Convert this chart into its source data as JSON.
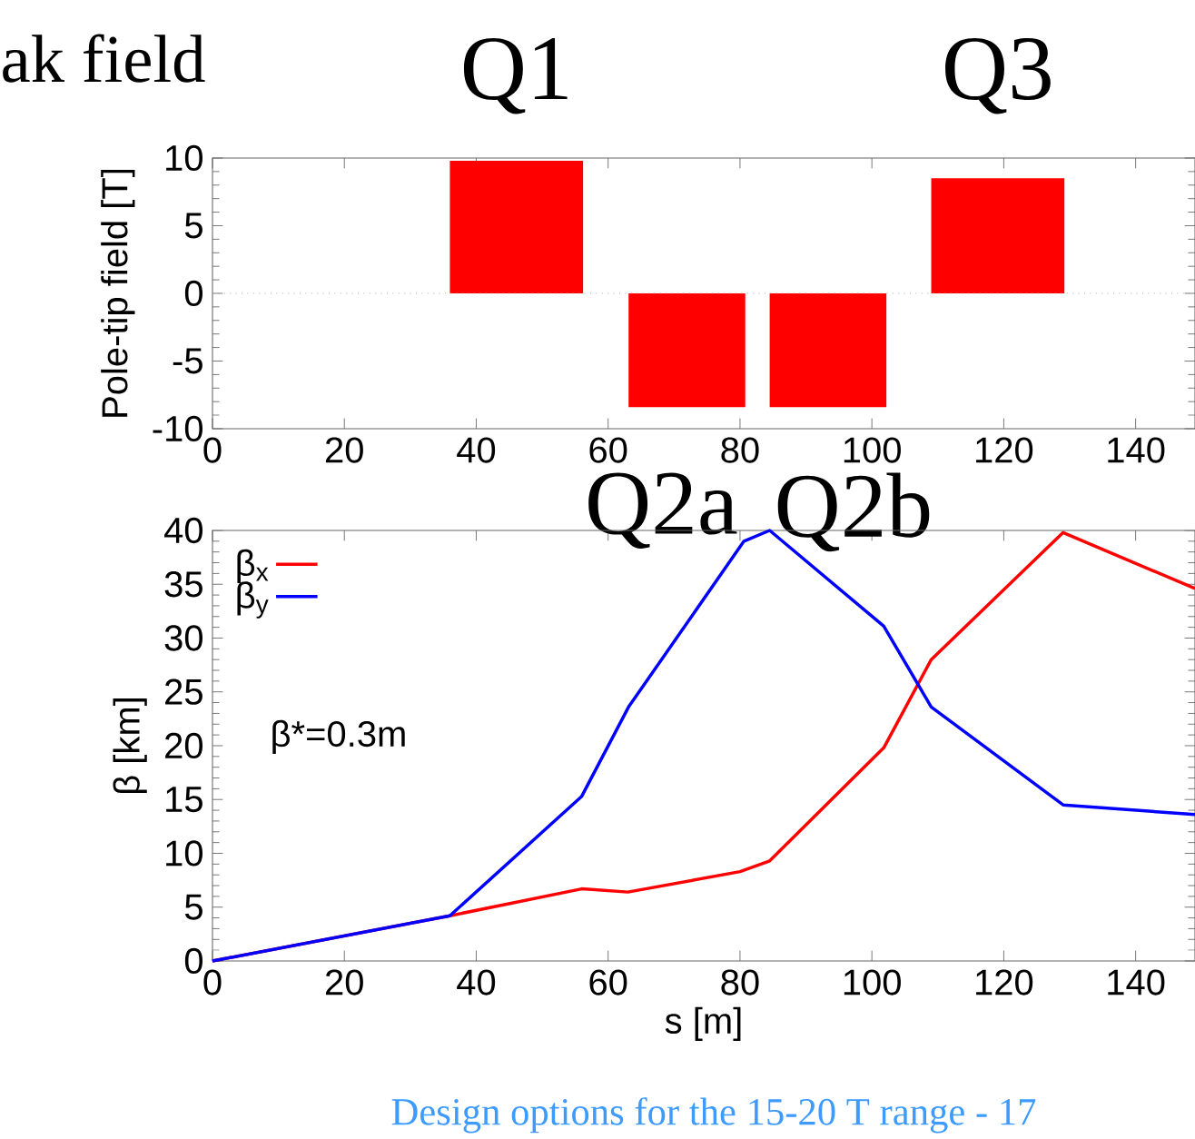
{
  "chart_data": [
    {
      "type": "area",
      "title": "ak field",
      "ylabel": "Pole-tip field [T]",
      "xlim": [
        0,
        149
      ],
      "xticks": [
        0,
        20,
        40,
        60,
        80,
        100,
        120,
        140
      ],
      "ylim": [
        -10,
        10
      ],
      "yticks": [
        -10,
        -5,
        0,
        5,
        10
      ],
      "series": [
        {
          "color": "#ff0000",
          "x": [
            36,
            56.2
          ],
          "values": [
            9.8,
            9.8
          ]
        },
        {
          "color": "#ff0000",
          "x": [
            63.1,
            80.8
          ],
          "values": [
            -8.4,
            -8.4
          ]
        },
        {
          "color": "#ff0000",
          "x": [
            84.5,
            102.2
          ],
          "values": [
            -8.4,
            -8.4
          ]
        },
        {
          "color": "#ff0000",
          "x": [
            109,
            129.2
          ],
          "values": [
            8.5,
            8.5
          ]
        }
      ],
      "ref_lines": [
        {
          "axis": "y",
          "value": 0,
          "line_style": "dotted",
          "color": "#a0a0a0"
        }
      ],
      "annotations": [
        "Q1",
        "Q3",
        "Q2a",
        "Q2b"
      ]
    },
    {
      "type": "line",
      "xlabel": "s [m]",
      "ylabel": "β [km]",
      "xlim": [
        0,
        149
      ],
      "xticks": [
        0,
        20,
        40,
        60,
        80,
        100,
        120,
        140
      ],
      "ylim": [
        0,
        40
      ],
      "yticks": [
        0,
        5,
        10,
        15,
        20,
        25,
        30,
        35,
        40
      ],
      "legend": "top left",
      "series": [
        {
          "name": "β$_{x}$",
          "color": "#ff0000",
          "x": [
            0,
            36,
            56,
            63,
            80,
            84.5,
            101.8,
            109,
            129,
            149
          ],
          "values": [
            0,
            4.2,
            6.7,
            6.4,
            8.3,
            9.3,
            19.8,
            28,
            39.8,
            34.6
          ]
        },
        {
          "name": "β$_{y}$",
          "color": "#0000ff",
          "x": [
            0,
            36,
            56,
            63.1,
            80.6,
            84.5,
            101.8,
            109,
            129,
            149
          ],
          "values": [
            0,
            4.2,
            15.3,
            23.6,
            39,
            40,
            31.1,
            23.6,
            14.5,
            13.6
          ]
        }
      ],
      "annotations": [
        "β*=0.3m",
        "Design options for the 15-20 T range - 17"
      ]
    }
  ]
}
